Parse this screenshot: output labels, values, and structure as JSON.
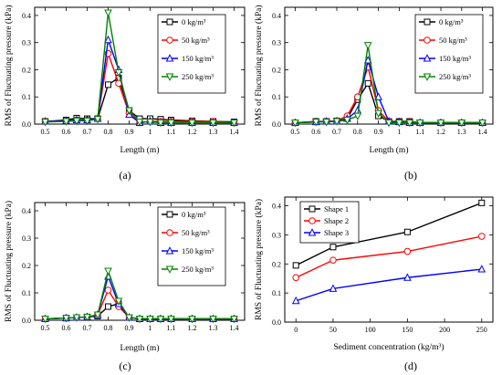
{
  "chart_data": [
    {
      "id": "a",
      "type": "line",
      "panel_label": "(a)",
      "xlabel": "Length (m)",
      "ylabel": "RMS of Fluctuating pressure (kPa)",
      "xlim": [
        0.45,
        1.45
      ],
      "ylim": [
        0,
        0.43
      ],
      "xticks": [
        0.5,
        0.6,
        0.7,
        0.8,
        0.9,
        1.0,
        1.1,
        1.2,
        1.3,
        1.4
      ],
      "yticks": [
        0.0,
        0.1,
        0.2,
        0.3,
        0.4
      ],
      "legend_position": "top-right",
      "x": [
        0.5,
        0.6,
        0.65,
        0.7,
        0.75,
        0.8,
        0.85,
        0.9,
        0.95,
        1.0,
        1.05,
        1.1,
        1.2,
        1.3,
        1.4
      ],
      "series": [
        {
          "name": "0 kg/m³",
          "color": "#000000",
          "marker": "square",
          "values": [
            0.01,
            0.015,
            0.022,
            0.02,
            0.02,
            0.145,
            0.17,
            0.05,
            0.02,
            0.02,
            0.018,
            0.015,
            0.012,
            0.01,
            0.008
          ]
        },
        {
          "name": "50 kg/m³",
          "color": "#ff0000",
          "marker": "circle",
          "values": [
            0.01,
            0.012,
            0.015,
            0.015,
            0.02,
            0.26,
            0.15,
            0.04,
            0.005,
            0.01,
            0.01,
            0.01,
            0.01,
            0.01,
            0.005
          ]
        },
        {
          "name": "150 kg/m³",
          "color": "#0000ff",
          "marker": "triangle-up",
          "values": [
            0.01,
            0.012,
            0.015,
            0.015,
            0.02,
            0.31,
            0.2,
            0.035,
            0.005,
            0.01,
            0.005,
            0.005,
            0.005,
            0.005,
            0.005
          ]
        },
        {
          "name": "250 kg/m³",
          "color": "#008000",
          "marker": "triangle-down",
          "values": [
            0.008,
            0.01,
            0.012,
            0.012,
            0.018,
            0.41,
            0.19,
            0.05,
            0.008,
            0.008,
            0.005,
            0.005,
            0.005,
            0.005,
            0.005
          ]
        }
      ]
    },
    {
      "id": "b",
      "type": "line",
      "panel_label": "(b)",
      "xlabel": "Length (m)",
      "ylabel": "RMS of Fluctuating pressure (kPa)",
      "xlim": [
        0.45,
        1.45
      ],
      "ylim": [
        0,
        0.43
      ],
      "xticks": [
        0.5,
        0.6,
        0.7,
        0.8,
        0.9,
        1.0,
        1.1,
        1.2,
        1.3,
        1.4
      ],
      "yticks": [
        0.0,
        0.1,
        0.2,
        0.3,
        0.4
      ],
      "legend_position": "top-right",
      "x": [
        0.5,
        0.6,
        0.65,
        0.7,
        0.75,
        0.8,
        0.85,
        0.9,
        0.95,
        1.0,
        1.05,
        1.1,
        1.2,
        1.3,
        1.4
      ],
      "series": [
        {
          "name": "0 kg/m³",
          "color": "#000000",
          "marker": "square",
          "values": [
            0.005,
            0.01,
            0.01,
            0.012,
            0.02,
            0.09,
            0.15,
            0.03,
            0.01,
            0.01,
            0.01,
            0.005,
            0.005,
            0.005,
            0.005
          ]
        },
        {
          "name": "50 kg/m³",
          "color": "#ff0000",
          "marker": "circle",
          "values": [
            0.005,
            0.008,
            0.01,
            0.012,
            0.03,
            0.1,
            0.21,
            0.05,
            0.01,
            0.008,
            0.008,
            0.005,
            0.005,
            0.005,
            0.005
          ]
        },
        {
          "name": "150 kg/m³",
          "color": "#0000ff",
          "marker": "triangle-up",
          "values": [
            0.005,
            0.008,
            0.01,
            0.01,
            0.02,
            0.05,
            0.235,
            0.1,
            0.01,
            0.008,
            0.005,
            0.005,
            0.005,
            0.005,
            0.005
          ]
        },
        {
          "name": "250 kg/m³",
          "color": "#008000",
          "marker": "triangle-down",
          "values": [
            0.005,
            0.008,
            0.008,
            0.01,
            0.015,
            0.03,
            0.29,
            0.04,
            0.005,
            0.005,
            0.005,
            0.005,
            0.005,
            0.005,
            0.005
          ]
        }
      ]
    },
    {
      "id": "c",
      "type": "line",
      "panel_label": "(c)",
      "xlabel": "Length (m)",
      "ylabel": "RMS of Fluctuating pressure (kPa)",
      "xlim": [
        0.45,
        1.45
      ],
      "ylim": [
        0,
        0.43
      ],
      "xticks": [
        0.5,
        0.6,
        0.7,
        0.8,
        0.9,
        1.0,
        1.1,
        1.2,
        1.3,
        1.4
      ],
      "yticks": [
        0.0,
        0.1,
        0.2,
        0.3,
        0.4
      ],
      "legend_position": "top-right",
      "x": [
        0.5,
        0.6,
        0.65,
        0.7,
        0.75,
        0.8,
        0.85,
        0.9,
        0.95,
        1.0,
        1.05,
        1.1,
        1.2,
        1.3,
        1.4
      ],
      "series": [
        {
          "name": "0 kg/m³",
          "color": "#000000",
          "marker": "square",
          "values": [
            0.005,
            0.008,
            0.01,
            0.012,
            0.015,
            0.05,
            0.06,
            0.01,
            0.005,
            0.005,
            0.005,
            0.005,
            0.005,
            0.005,
            0.005
          ]
        },
        {
          "name": "50 kg/m³",
          "color": "#ff0000",
          "marker": "circle",
          "values": [
            0.005,
            0.008,
            0.01,
            0.012,
            0.02,
            0.11,
            0.05,
            0.01,
            0.005,
            0.005,
            0.005,
            0.005,
            0.005,
            0.005,
            0.005
          ]
        },
        {
          "name": "150 kg/m³",
          "color": "#0000ff",
          "marker": "triangle-up",
          "values": [
            0.005,
            0.008,
            0.01,
            0.012,
            0.02,
            0.16,
            0.06,
            0.01,
            0.005,
            0.005,
            0.005,
            0.005,
            0.005,
            0.005,
            0.005
          ]
        },
        {
          "name": "250 kg/m³",
          "color": "#008000",
          "marker": "triangle-down",
          "values": [
            0.005,
            0.008,
            0.01,
            0.012,
            0.02,
            0.18,
            0.07,
            0.01,
            0.005,
            0.005,
            0.005,
            0.005,
            0.005,
            0.005,
            0.005
          ]
        }
      ]
    },
    {
      "id": "d",
      "type": "line",
      "panel_label": "(d)",
      "xlabel": "Sediment concentration (kg/m³)",
      "ylabel": "RMS of Fluctuating pressure (kPa)",
      "xlim": [
        -15,
        265
      ],
      "ylim": [
        0,
        0.43
      ],
      "xticks": [
        0,
        50,
        100,
        150,
        200,
        250
      ],
      "yticks": [
        0.0,
        0.1,
        0.2,
        0.3,
        0.4
      ],
      "legend_position": "top-left",
      "x": [
        0,
        50,
        150,
        250
      ],
      "series": [
        {
          "name": "Shape 1",
          "color": "#000000",
          "marker": "square",
          "values": [
            0.195,
            0.258,
            0.31,
            0.41
          ]
        },
        {
          "name": "Shape 2",
          "color": "#ff0000",
          "marker": "circle",
          "values": [
            0.153,
            0.213,
            0.243,
            0.295
          ]
        },
        {
          "name": "Shape 3",
          "color": "#0000ff",
          "marker": "triangle-up",
          "values": [
            0.073,
            0.115,
            0.153,
            0.182
          ]
        }
      ]
    }
  ]
}
